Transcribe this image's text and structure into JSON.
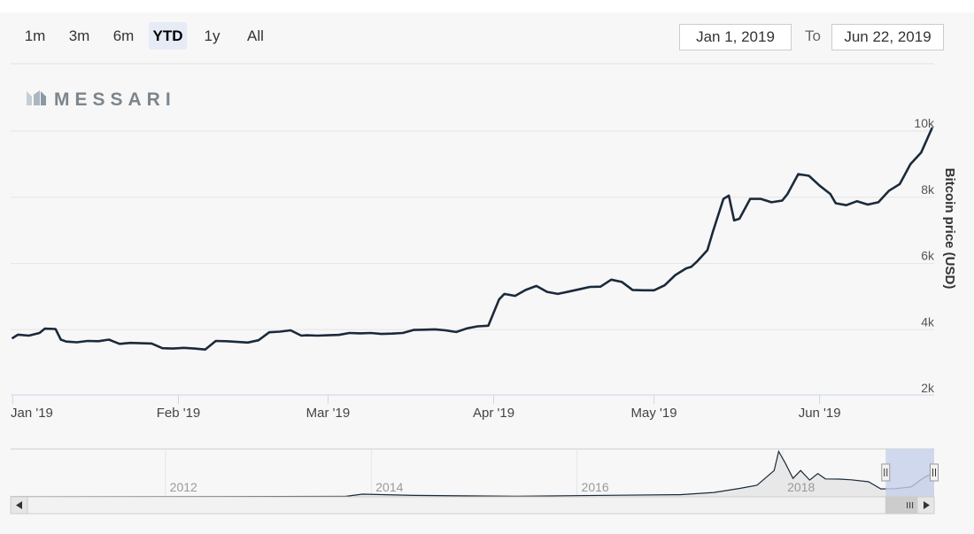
{
  "range_selector": {
    "buttons": [
      {
        "label": "1m",
        "active": false
      },
      {
        "label": "3m",
        "active": false
      },
      {
        "label": "6m",
        "active": false
      },
      {
        "label": "YTD",
        "active": true
      },
      {
        "label": "1y",
        "active": false
      },
      {
        "label": "All",
        "active": false
      }
    ],
    "from_date": "Jan 1, 2019",
    "to_label": "To",
    "to_date": "Jun 22, 2019"
  },
  "brand": {
    "name": "MESSARI",
    "logo_icon": "messari-logo-icon"
  },
  "colors": {
    "line": "#1b2a3a",
    "navigator_mask": "#c4cfe8",
    "grid": "#e6e6e6"
  },
  "chart_data": {
    "type": "line",
    "title": "",
    "ylabel": "Bitcoin price (USD)",
    "y_axis_side": "right",
    "ylim": [
      2000,
      10000
    ],
    "yticks": [
      {
        "value": 2000,
        "label": "2k"
      },
      {
        "value": 4000,
        "label": "4k"
      },
      {
        "value": 6000,
        "label": "6k"
      },
      {
        "value": 8000,
        "label": "8k"
      },
      {
        "value": 10000,
        "label": "10k"
      }
    ],
    "xlim": [
      "2019-01-01",
      "2019-06-22"
    ],
    "xticks": [
      {
        "value": "2019-01-01",
        "label": "Jan '19"
      },
      {
        "value": "2019-02-01",
        "label": "Feb '19"
      },
      {
        "value": "2019-03-01",
        "label": "Mar '19"
      },
      {
        "value": "2019-04-01",
        "label": "Apr '19"
      },
      {
        "value": "2019-05-01",
        "label": "May '19"
      },
      {
        "value": "2019-06-01",
        "label": "Jun '19"
      }
    ],
    "grid": true,
    "legend": false,
    "series": [
      {
        "x": [
          "2019-01-01",
          "2019-01-02",
          "2019-01-04",
          "2019-01-06",
          "2019-01-07",
          "2019-01-09",
          "2019-01-10",
          "2019-01-11",
          "2019-01-13",
          "2019-01-15",
          "2019-01-17",
          "2019-01-19",
          "2019-01-21",
          "2019-01-23",
          "2019-01-25",
          "2019-01-27",
          "2019-01-29",
          "2019-01-31",
          "2019-02-02",
          "2019-02-04",
          "2019-02-06",
          "2019-02-08",
          "2019-02-10",
          "2019-02-12",
          "2019-02-14",
          "2019-02-16",
          "2019-02-18",
          "2019-02-20",
          "2019-02-22",
          "2019-02-24",
          "2019-02-25",
          "2019-02-27",
          "2019-03-01",
          "2019-03-03",
          "2019-03-05",
          "2019-03-07",
          "2019-03-09",
          "2019-03-11",
          "2019-03-13",
          "2019-03-15",
          "2019-03-17",
          "2019-03-19",
          "2019-03-21",
          "2019-03-23",
          "2019-03-25",
          "2019-03-27",
          "2019-03-29",
          "2019-03-31",
          "2019-04-02",
          "2019-04-03",
          "2019-04-05",
          "2019-04-07",
          "2019-04-09",
          "2019-04-11",
          "2019-04-13",
          "2019-04-15",
          "2019-04-17",
          "2019-04-19",
          "2019-04-21",
          "2019-04-23",
          "2019-04-25",
          "2019-04-27",
          "2019-04-29",
          "2019-05-01",
          "2019-05-03",
          "2019-05-05",
          "2019-05-07",
          "2019-05-08",
          "2019-05-09",
          "2019-05-11",
          "2019-05-12",
          "2019-05-14",
          "2019-05-15",
          "2019-05-16",
          "2019-05-17",
          "2019-05-19",
          "2019-05-21",
          "2019-05-23",
          "2019-05-25",
          "2019-05-26",
          "2019-05-28",
          "2019-05-30",
          "2019-06-01",
          "2019-06-03",
          "2019-06-04",
          "2019-06-06",
          "2019-06-08",
          "2019-06-10",
          "2019-06-12",
          "2019-06-14",
          "2019-06-16",
          "2019-06-18",
          "2019-06-20",
          "2019-06-22"
        ],
        "y": [
          3750,
          3850,
          3820,
          3900,
          4030,
          4020,
          3700,
          3640,
          3620,
          3660,
          3650,
          3700,
          3570,
          3600,
          3590,
          3580,
          3440,
          3430,
          3450,
          3430,
          3400,
          3660,
          3650,
          3630,
          3610,
          3680,
          3920,
          3940,
          3980,
          3820,
          3830,
          3820,
          3830,
          3840,
          3900,
          3890,
          3900,
          3870,
          3880,
          3900,
          3990,
          4000,
          4010,
          3980,
          3930,
          4040,
          4100,
          4120,
          4910,
          5080,
          5020,
          5200,
          5320,
          5140,
          5080,
          5150,
          5220,
          5290,
          5300,
          5510,
          5440,
          5200,
          5190,
          5190,
          5340,
          5650,
          5850,
          5900,
          6050,
          6400,
          6950,
          7950,
          8050,
          7300,
          7350,
          7950,
          7950,
          7850,
          7900,
          8100,
          8700,
          8650,
          8350,
          8100,
          7820,
          7760,
          7880,
          7780,
          7850,
          8200,
          8400,
          9000,
          9350,
          10080
        ]
      }
    ]
  },
  "navigator": {
    "xticks": [
      {
        "value": "2012-01-01",
        "label": "2012"
      },
      {
        "value": "2014-01-01",
        "label": "2014"
      },
      {
        "value": "2016-01-01",
        "label": "2016"
      },
      {
        "value": "2018-01-01",
        "label": "2018"
      }
    ],
    "xlim": [
      "2010-07-01",
      "2019-06-22"
    ],
    "selected_range": [
      "2019-01-01",
      "2019-06-22"
    ],
    "series": {
      "x": [
        "2010-07-01",
        "2013-10-01",
        "2013-12-01",
        "2014-06-01",
        "2015-06-01",
        "2016-06-01",
        "2017-01-01",
        "2017-05-01",
        "2017-08-01",
        "2017-10-01",
        "2017-12-01",
        "2017-12-17",
        "2018-01-10",
        "2018-02-06",
        "2018-03-05",
        "2018-04-06",
        "2018-05-05",
        "2018-06-01",
        "2018-07-20",
        "2018-09-01",
        "2018-11-01",
        "2018-12-15",
        "2019-02-01",
        "2019-04-01",
        "2019-05-15",
        "2019-06-22"
      ],
      "y": [
        0,
        200,
        1100,
        600,
        250,
        650,
        900,
        1800,
        3500,
        4800,
        11000,
        19000,
        14000,
        7700,
        11000,
        7000,
        9700,
        7500,
        7400,
        7100,
        6300,
        3300,
        3400,
        4100,
        7900,
        10100
      ]
    },
    "scroll_grip_icon": "scrollbar-grip-icon",
    "scroll_left_icon": "arrow-left-icon",
    "scroll_right_icon": "arrow-right-icon"
  }
}
